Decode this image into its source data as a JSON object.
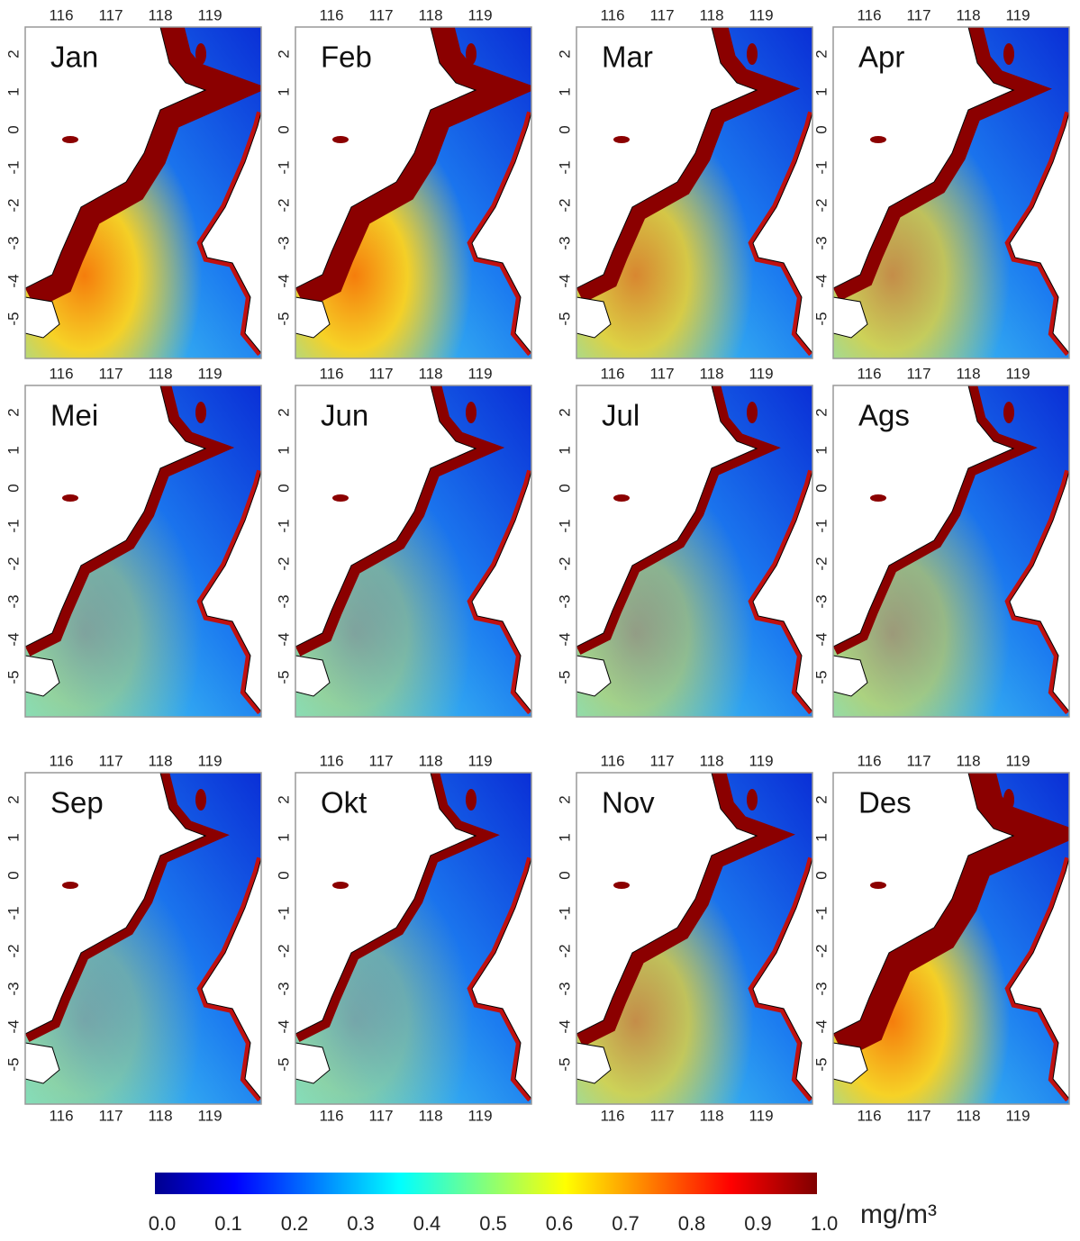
{
  "panels": [
    {
      "label": "Jan"
    },
    {
      "label": "Feb"
    },
    {
      "label": "Mar"
    },
    {
      "label": "Apr"
    },
    {
      "label": "Mei"
    },
    {
      "label": "Jun"
    },
    {
      "label": "Jul"
    },
    {
      "label": "Ags"
    },
    {
      "label": "Sep"
    },
    {
      "label": "Okt"
    },
    {
      "label": "Nov"
    },
    {
      "label": "Des"
    }
  ],
  "lon_ticks": [
    "116",
    "117",
    "118",
    "119"
  ],
  "lat_ticks": [
    "2",
    "1",
    "0",
    "-1",
    "-2",
    "-3",
    "-4",
    "-5"
  ],
  "colorbar": {
    "ticks": [
      "0.0",
      "0.1",
      "0.2",
      "0.3",
      "0.4",
      "0.5",
      "0.6",
      "0.7",
      "0.8",
      "0.9",
      "1.0"
    ],
    "unit": "mg/m³"
  }
}
